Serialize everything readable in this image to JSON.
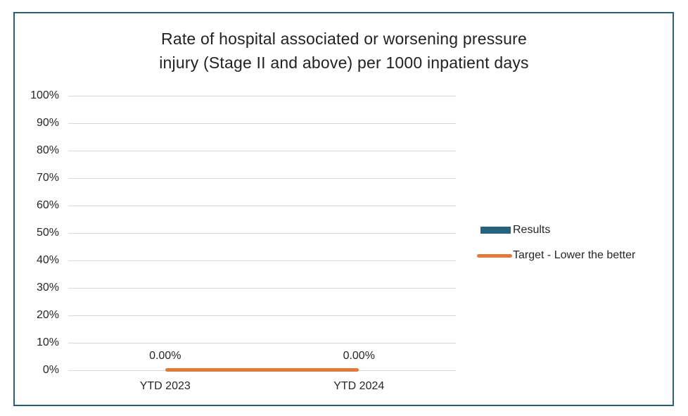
{
  "chart_data": {
    "type": "bar",
    "title": "Rate of hospital associated or worsening pressure injury (Stage II and above) per 1000 inpatient days",
    "title_lines": [
      "Rate of hospital associated or worsening pressure",
      "injury (Stage II and above) per 1000 inpatient days"
    ],
    "categories": [
      "YTD 2023",
      "YTD 2024"
    ],
    "series": [
      {
        "name": "Results",
        "type": "bar",
        "color": "#26637F",
        "values": [
          0.0,
          0.0
        ]
      },
      {
        "name": "Target - Lower the better",
        "type": "line",
        "color": "#E07B3C",
        "values": [
          0.0,
          0.0
        ]
      }
    ],
    "data_labels": [
      "0.00%",
      "0.00%"
    ],
    "yticks": [
      "0%",
      "10%",
      "20%",
      "30%",
      "40%",
      "50%",
      "60%",
      "70%",
      "80%",
      "90%",
      "100%"
    ],
    "ylim": [
      0,
      1
    ],
    "grid": true,
    "legend_position": "right"
  },
  "colors": {
    "frame_border": "#2A5E76",
    "gridline": "#D9D9D9",
    "text": "#262626"
  }
}
